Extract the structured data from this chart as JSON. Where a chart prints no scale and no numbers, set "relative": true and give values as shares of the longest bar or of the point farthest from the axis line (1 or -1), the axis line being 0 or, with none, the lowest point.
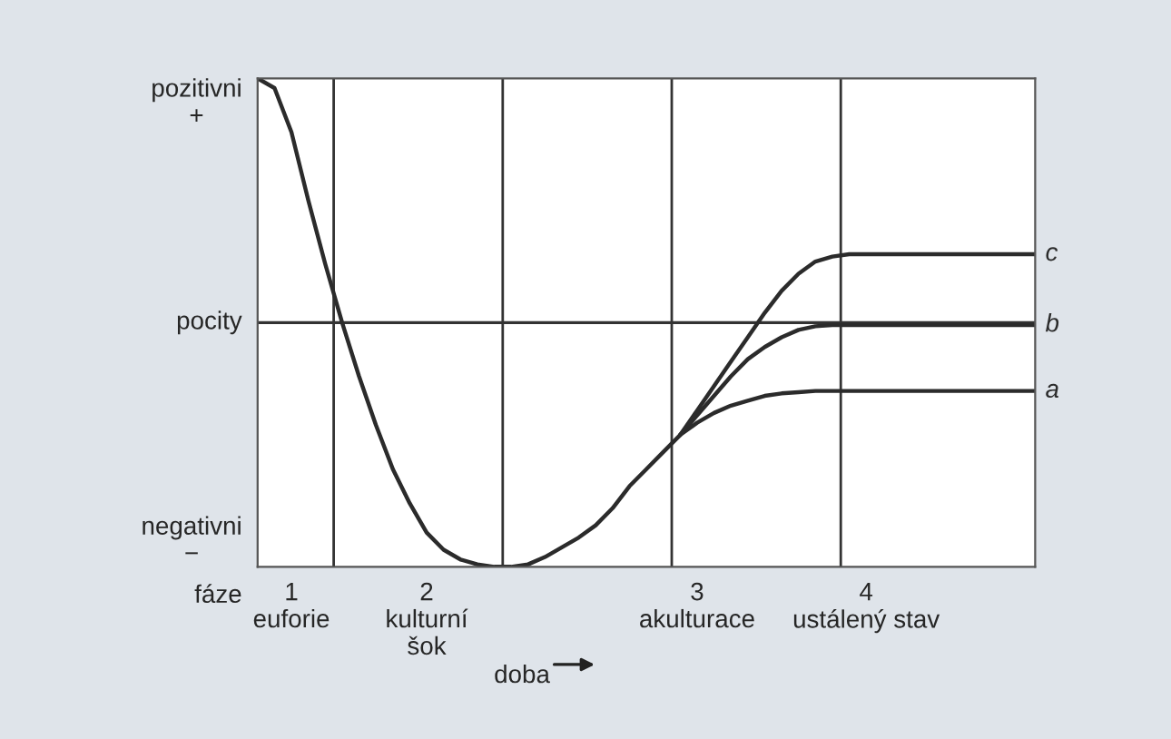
{
  "chart_data": {
    "type": "line",
    "relative": true,
    "xlabel": "doba",
    "categories": [
      null,
      null,
      "1\neuforie",
      null,
      null,
      null,
      null,
      null,
      null,
      null,
      "2\nkulturní\nšok",
      null,
      null,
      null,
      null,
      null,
      null,
      null,
      null,
      null,
      null,
      null,
      null,
      null,
      null,
      null,
      "3\nakulturace",
      null,
      null,
      null,
      null,
      null,
      null,
      null,
      null,
      null,
      "4\nustálený stav",
      null,
      null,
      null,
      null,
      null,
      null,
      null,
      null,
      null,
      null
    ],
    "annotations": [
      "pozitivni\n+",
      "pocity",
      "negativni\n−",
      "fáze"
    ],
    "ref_lines": [
      {
        "axis": "y",
        "value": 0,
        "label": null,
        "color": "#333333"
      }
    ],
    "marker": "none",
    "line_style": "solid",
    "legend": false,
    "grid": false,
    "series": [
      {
        "name": "a",
        "color": "#2b2b2b",
        "values": [
          null,
          null,
          null,
          null,
          null,
          null,
          null,
          null,
          null,
          null,
          null,
          null,
          null,
          null,
          null,
          null,
          null,
          null,
          null,
          null,
          null,
          null,
          null,
          null,
          null,
          -0.46,
          -0.41,
          -0.37,
          -0.34,
          -0.32,
          -0.3,
          -0.29,
          -0.285,
          -0.28,
          -0.28,
          -0.28,
          -0.28,
          -0.28,
          -0.28,
          -0.28,
          -0.28,
          -0.28,
          -0.28,
          -0.28,
          -0.28,
          -0.28,
          -0.28
        ]
      },
      {
        "name": "b",
        "color": "#2b2b2b",
        "values": [
          null,
          null,
          null,
          null,
          null,
          null,
          null,
          null,
          null,
          null,
          null,
          null,
          null,
          null,
          null,
          null,
          null,
          null,
          null,
          null,
          null,
          null,
          null,
          null,
          null,
          -0.46,
          -0.38,
          -0.3,
          -0.22,
          -0.15,
          -0.1,
          -0.06,
          -0.03,
          -0.015,
          -0.01,
          -0.01,
          -0.01,
          -0.01,
          -0.01,
          -0.01,
          -0.01,
          -0.01,
          -0.01,
          -0.01,
          -0.01,
          -0.01,
          -0.01
        ]
      },
      {
        "name": "c",
        "color": "#2b2b2b",
        "values": [
          1.0,
          0.96,
          0.78,
          0.5,
          0.24,
          0.0,
          -0.22,
          -0.42,
          -0.6,
          -0.74,
          -0.86,
          -0.93,
          -0.97,
          -0.99,
          -1.0,
          -1.0,
          -0.99,
          -0.96,
          -0.92,
          -0.88,
          -0.83,
          -0.76,
          -0.67,
          -0.6,
          -0.53,
          -0.46,
          -0.36,
          -0.26,
          -0.16,
          -0.06,
          0.04,
          0.13,
          0.2,
          0.25,
          0.27,
          0.28,
          0.28,
          0.28,
          0.28,
          0.28,
          0.28,
          0.28,
          0.28,
          0.28,
          0.28,
          0.28,
          0.28
        ]
      }
    ]
  }
}
